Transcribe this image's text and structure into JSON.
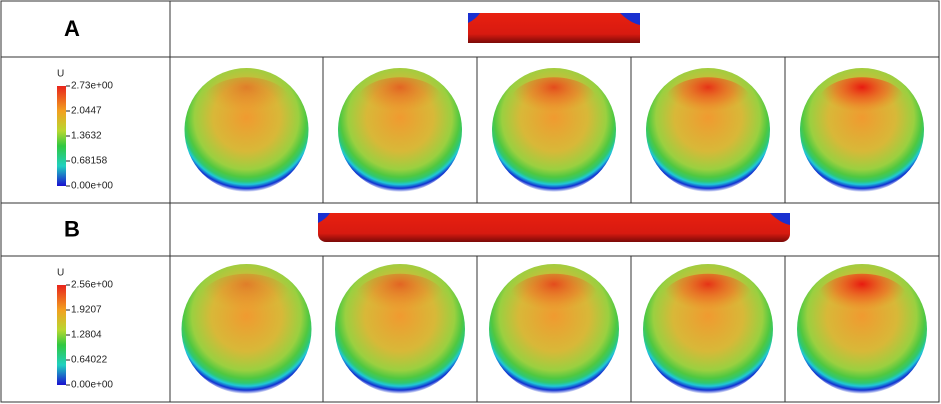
{
  "panels": [
    {
      "label": "A",
      "legend": {
        "title": "U",
        "ticks": [
          "2.73e+00",
          "2.0447",
          "1.3632",
          "0.68158",
          "0.00e+00"
        ]
      }
    },
    {
      "label": "B",
      "legend": {
        "title": "U",
        "ticks": [
          "2.56e+00",
          "1.9207",
          "1.2804",
          "0.64022",
          "0.00e+00"
        ]
      }
    }
  ]
}
